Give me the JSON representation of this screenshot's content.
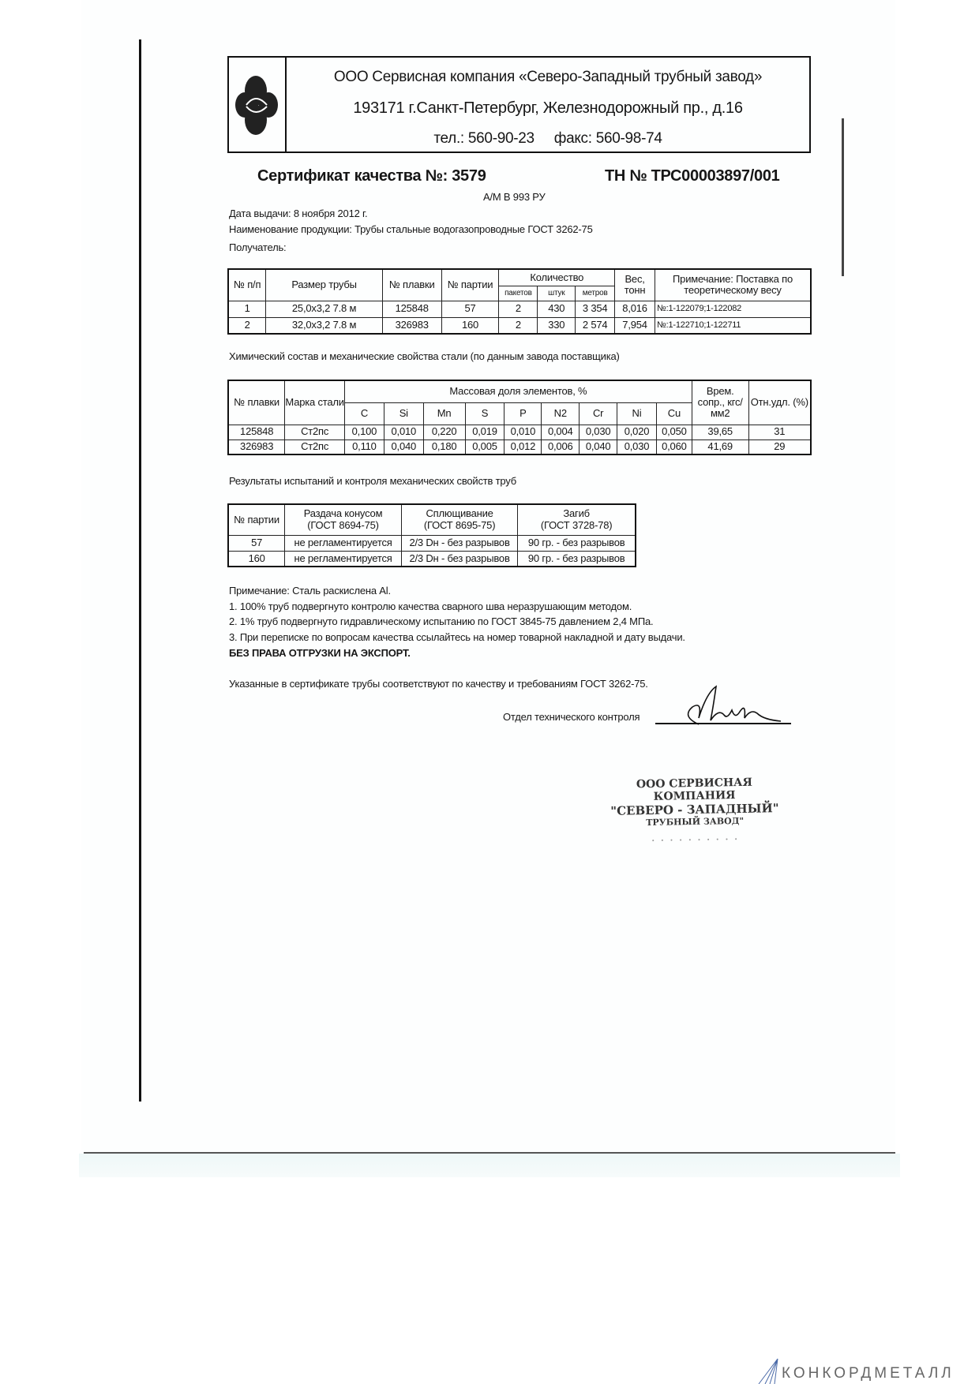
{
  "header": {
    "company": "ООО Сервисная компания «Северо-Западный трубный завод»",
    "address": "193171 г.Санкт-Петербург, Железнодорожный пр., д.16",
    "phone": "тел.: 560-90-23",
    "fax": "факс: 560-98-74"
  },
  "certificate": {
    "title": "Сертификат качества  №: 3579",
    "tn": "ТН № ТРС00003897/001",
    "vehicle": "А/М В 993 РУ",
    "issue_date": "Дата выдачи: 8 ноября 2012 г.",
    "product": "Наименование продукции: Трубы стальные водогазопроводные ГОСТ 3262-75",
    "recipient": "Получатель:"
  },
  "shipment_table": {
    "headers": {
      "num": "№ п/п",
      "size": "Размер трубы",
      "heat": "№ плавки",
      "batch": "№ партии",
      "quantity": "Количество",
      "packs": "пакетов",
      "pieces": "штук",
      "meters": "метров",
      "weight": "Вес, тонн",
      "note": "Примечание: Поставка по теоретическому весу"
    },
    "rows": [
      {
        "num": "1",
        "size": "25,0х3,2    7.8 м",
        "heat": "125848",
        "batch": "57",
        "packs": "2",
        "pieces": "430",
        "meters": "3 354",
        "weight": "8,016",
        "note": "№:1-122079;1-122082"
      },
      {
        "num": "2",
        "size": "32,0х3,2    7.8 м",
        "heat": "326983",
        "batch": "160",
        "packs": "2",
        "pieces": "330",
        "meters": "2 574",
        "weight": "7,954",
        "note": "№:1-122710;1-122711"
      }
    ]
  },
  "chem_title": "Химический состав и механические свойства стали (по данным завода поставщика)",
  "chem_table": {
    "headers": {
      "heat": "№ плавки",
      "grade": "Марка стали",
      "mass": "Массовая доля элементов, %",
      "elements": [
        "C",
        "Si",
        "Mn",
        "S",
        "P",
        "N2",
        "Cr",
        "Ni",
        "Cu"
      ],
      "strength": "Врем. сопр., кгс/мм2",
      "elong": "Отн.удл. (%)"
    },
    "rows": [
      {
        "heat": "125848",
        "grade": "Ст2пс",
        "values": [
          "0,100",
          "0,010",
          "0,220",
          "0,019",
          "0,010",
          "0,004",
          "0,030",
          "0,020",
          "0,050"
        ],
        "strength": "39,65",
        "elong": "31"
      },
      {
        "heat": "326983",
        "grade": "Ст2пс",
        "values": [
          "0,110",
          "0,040",
          "0,180",
          "0,005",
          "0,012",
          "0,006",
          "0,040",
          "0,030",
          "0,060"
        ],
        "strength": "41,69",
        "elong": "29"
      }
    ]
  },
  "tests_title": "Результаты испытаний и контроля механических свойств труб",
  "tests_table": {
    "headers": {
      "batch": "№ партии",
      "cone": "Раздача конусом",
      "cone_std": "(ГОСТ 8694-75)",
      "flat": "Сплющивание",
      "flat_std": "(ГОСТ 8695-75)",
      "bend": "Загиб",
      "bend_std": "(ГОСТ 3728-78)"
    },
    "rows": [
      {
        "batch": "57",
        "cone": "не регламентируется",
        "flat": "2/3 Dн - без разрывов",
        "bend": "90 гр. - без разрывов"
      },
      {
        "batch": "160",
        "cone": "не регламентируется",
        "flat": "2/3 Dн - без разрывов",
        "bend": "90 гр. - без разрывов"
      }
    ]
  },
  "notes": {
    "head": "Примечание: Сталь раскислена Al.",
    "items": [
      "1. 100% труб подвергнуто контролю качества сварного шва неразрушающим методом.",
      "2. 1% труб подвергнуто гидравлическому испытанию по ГОСТ 3845-75 давлением 2,4 МПа.",
      "3. При переписке по вопросам качества ссылайтесь на номер товарной накладной и дату выдачи."
    ],
    "export": "БЕЗ ПРАВА ОТГРУЗКИ НА ЭКСПОРТ."
  },
  "conformity": "Указанные в сертификате трубы соответствуют по качеству и требованиям ГОСТ 3262-75.",
  "signature_label": "Отдел технического контроля",
  "stamp": {
    "line1": "ООО СЕРВИСНАЯ КОМПАНИЯ",
    "line2": "\"СЕВЕРО - ЗАПАДНЫЙ\"",
    "line3": "ТРУБНЫЙ ЗАВОД\""
  },
  "watermark": "КОНКОРДМЕТАЛЛ"
}
